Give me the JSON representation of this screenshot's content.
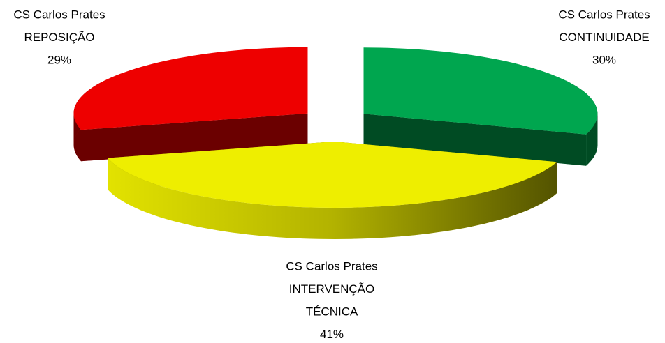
{
  "chart_data": {
    "type": "pie3d",
    "categories": [
      [
        "CS Carlos Prates",
        "CONTINUIDADE"
      ],
      [
        "CS Carlos Prates",
        "INTERVENÇÃO",
        "TÉCNICA"
      ],
      [
        "CS Carlos Prates",
        "REPOSIÇÃO"
      ]
    ],
    "values": [
      30,
      41,
      29
    ],
    "value_labels": [
      "30%",
      "41%",
      "29%"
    ],
    "colors": [
      "#00a64f",
      "#eeee00",
      "#ee0000"
    ],
    "exploded": true
  }
}
